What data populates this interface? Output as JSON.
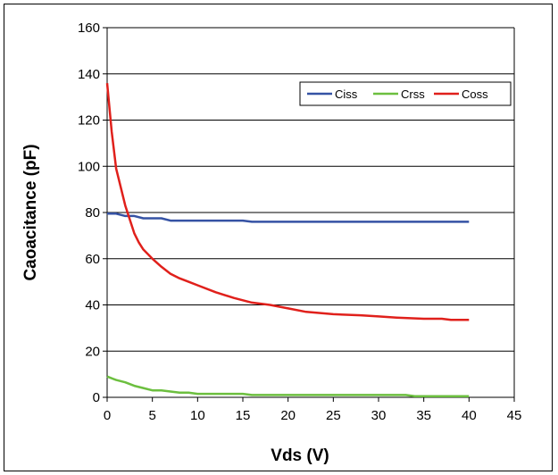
{
  "chart_data": {
    "type": "line",
    "xlabel": "Vds (V)",
    "ylabel": "Caoacitance (pF)",
    "xlim": [
      0,
      45
    ],
    "ylim": [
      0,
      160
    ],
    "xticks": [
      0,
      5,
      10,
      15,
      20,
      25,
      30,
      35,
      40,
      45
    ],
    "yticks": [
      0,
      20,
      40,
      60,
      80,
      100,
      120,
      140,
      160
    ],
    "grid": "horizontal",
    "legend_position": "top-right",
    "series": [
      {
        "name": "Ciss",
        "color": "#3552a4",
        "x": [
          0,
          1,
          2,
          3,
          4,
          5,
          6,
          7,
          10,
          15,
          16,
          20,
          25,
          30,
          35,
          40
        ],
        "y": [
          79.5,
          79.5,
          78.5,
          78.5,
          77.5,
          77.5,
          77.5,
          76.5,
          76.5,
          76.5,
          76,
          76,
          76,
          76,
          76,
          76
        ]
      },
      {
        "name": "Crss",
        "color": "#6cbf3f",
        "x": [
          0,
          1,
          2,
          3,
          4,
          5,
          6,
          7,
          8,
          9,
          10,
          15,
          16,
          20,
          25,
          30,
          33,
          34,
          35,
          40
        ],
        "y": [
          9,
          7.5,
          6.5,
          5,
          4,
          3,
          3,
          2.5,
          2,
          2,
          1.5,
          1.5,
          1,
          1,
          1,
          1,
          1,
          0.5,
          0.5,
          0.5
        ]
      },
      {
        "name": "Coss",
        "color": "#e0201b",
        "x": [
          0,
          0.5,
          1,
          2,
          3,
          3.5,
          4,
          5,
          6,
          7,
          8,
          9,
          10,
          12,
          14,
          16,
          18,
          20,
          22,
          25,
          28,
          30,
          32,
          35,
          37,
          38,
          40
        ],
        "y": [
          136,
          115,
          99,
          83,
          71,
          67,
          64,
          60,
          56.5,
          53.5,
          51.5,
          50,
          48.5,
          45.5,
          43,
          41,
          40,
          38.5,
          37,
          36,
          35.5,
          35,
          34.5,
          34,
          34,
          33.5,
          33.5
        ]
      }
    ]
  }
}
